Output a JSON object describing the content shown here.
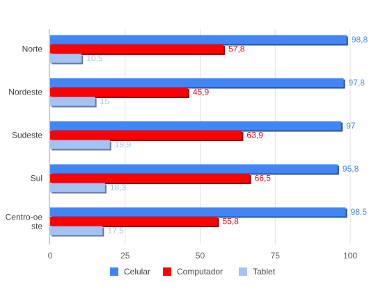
{
  "chart_data": {
    "type": "bar",
    "orientation": "horizontal",
    "categories": [
      "Norte",
      "Nordeste",
      "Sudeste",
      "Sul",
      "Centro-oeste"
    ],
    "category_display": [
      [
        "Norte"
      ],
      [
        "Nordeste"
      ],
      [
        "Sudeste"
      ],
      [
        "Sul"
      ],
      [
        "Centro-oe",
        "ste"
      ]
    ],
    "series": [
      {
        "name": "Celular",
        "color": "#4285f4",
        "values": [
          98.8,
          97.8,
          97,
          95.8,
          98.5
        ],
        "labels": [
          "98,8",
          "97,8",
          "97",
          "95,8",
          "98,5"
        ]
      },
      {
        "name": "Computador",
        "color": "#ff0000",
        "values": [
          57.8,
          45.9,
          63.9,
          66.5,
          55.8
        ],
        "labels": [
          "57,8",
          "45,9",
          "63,9",
          "66,5",
          "55,8"
        ]
      },
      {
        "name": "Tablet",
        "color": "#a4c2f4",
        "values": [
          10.5,
          15,
          19.9,
          18.3,
          17.5
        ],
        "labels": [
          "10,5",
          "15",
          "19,9",
          "18,3",
          "17,5"
        ]
      }
    ],
    "xlim": [
      0,
      100
    ],
    "xticks": [
      "0",
      "25",
      "50",
      "75",
      "100"
    ],
    "grid": true,
    "legend_position": "bottom"
  }
}
